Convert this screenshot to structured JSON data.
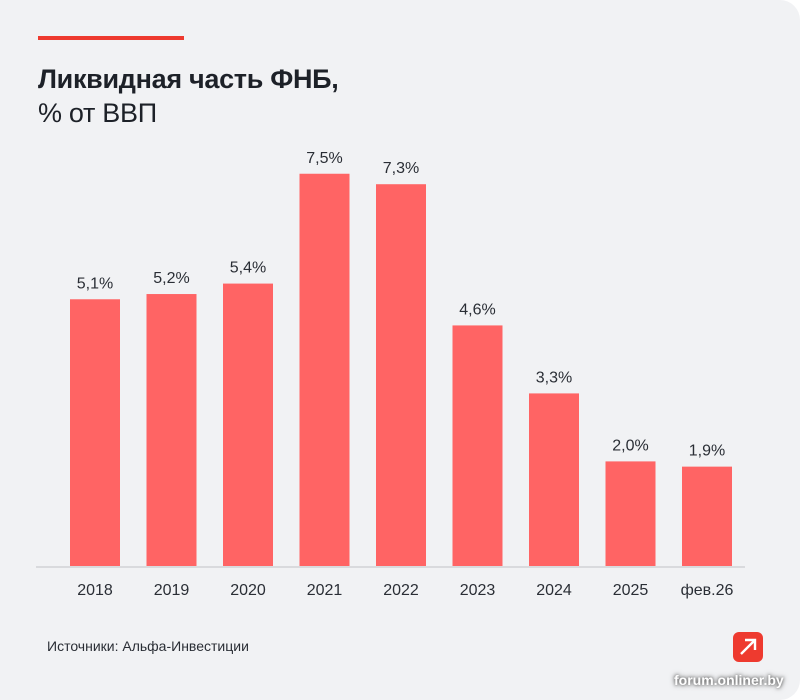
{
  "header": {
    "title": "Ликвидная часть ФНБ,",
    "subtitle": "% от ВВП"
  },
  "footer": {
    "source": "Источники: Альфа-Инвестиции",
    "watermark": "forum.onliner.by",
    "logo_icon": "arrow-up-right-icon"
  },
  "colors": {
    "bar": "#ff6464",
    "accent": "#ee3a2f",
    "background": "#f1f2f4",
    "text": "#1d2128"
  },
  "chart_data": {
    "type": "bar",
    "title": "Ликвидная часть ФНБ, % от ВВП",
    "xlabel": "",
    "ylabel": "% от ВВП",
    "ylim": [
      0,
      8
    ],
    "grid": false,
    "categories": [
      "2018",
      "2019",
      "2020",
      "2021",
      "2022",
      "2023",
      "2024",
      "2025",
      "фев.26"
    ],
    "values": [
      5.1,
      5.2,
      5.4,
      7.5,
      7.3,
      4.6,
      3.3,
      2.0,
      1.9
    ],
    "labels": [
      "5,1%",
      "5,2%",
      "5,4%",
      "7,5%",
      "7,3%",
      "4,6%",
      "3,3%",
      "2,0%",
      "1,9%"
    ]
  }
}
